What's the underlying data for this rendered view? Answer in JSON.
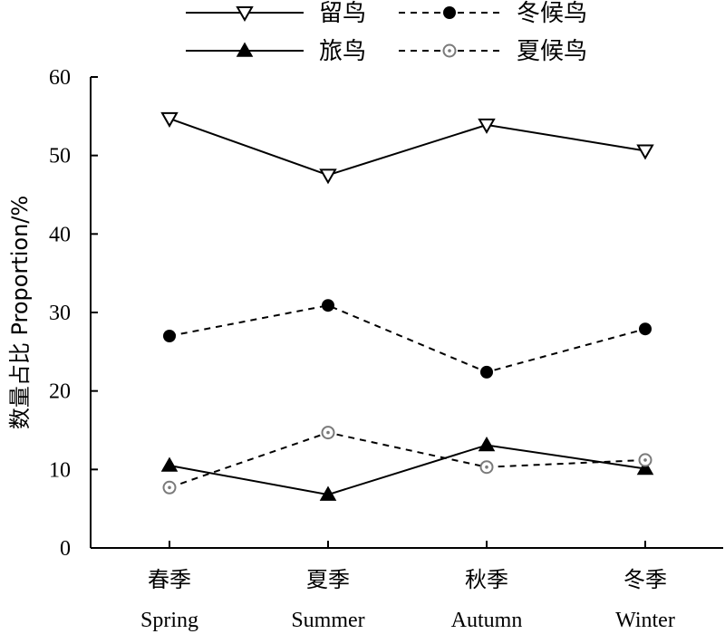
{
  "chart_data": {
    "type": "line",
    "categories": [
      "春季",
      "夏季",
      "秋季",
      "冬季"
    ],
    "categories_en": [
      "Spring",
      "Summer",
      "Autumn",
      "Winter"
    ],
    "ylabel": "数量占比 Proportion/%",
    "ylim": [
      0,
      60
    ],
    "yticks": [
      0,
      10,
      20,
      30,
      40,
      50,
      60
    ],
    "grid": false,
    "legend_position": "top",
    "series": [
      {
        "name": "留鸟",
        "values": [
          54.7,
          47.5,
          53.9,
          50.6
        ],
        "line_style": "solid",
        "marker": "triangle-down-open"
      },
      {
        "name": "冬候鸟",
        "values": [
          27.0,
          30.9,
          22.4,
          27.9
        ],
        "line_style": "dashed",
        "marker": "circle-filled"
      },
      {
        "name": "旅鸟",
        "values": [
          10.5,
          6.8,
          13.1,
          10.1
        ],
        "line_style": "solid",
        "marker": "triangle-up-filled"
      },
      {
        "name": "夏候鸟",
        "values": [
          7.7,
          14.7,
          10.3,
          11.2
        ],
        "line_style": "dashed",
        "marker": "circle-dot-open"
      }
    ]
  }
}
